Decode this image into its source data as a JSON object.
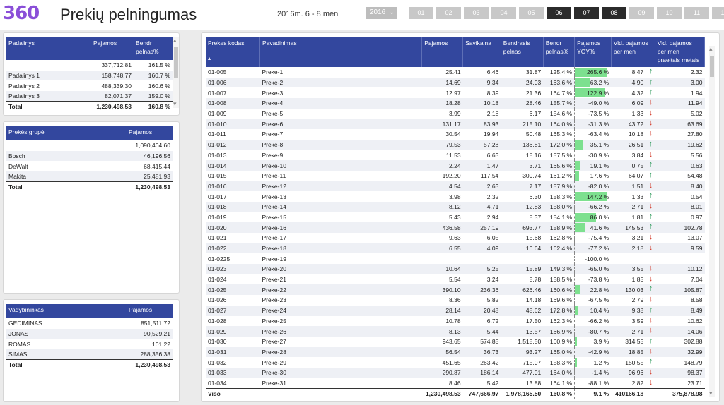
{
  "header": {
    "logo": "360",
    "title": "Prekių pelningumas",
    "period": "2016m. 6 - 8 mėn",
    "year": "2016",
    "months": [
      "01",
      "02",
      "03",
      "04",
      "05",
      "06",
      "07",
      "08",
      "09",
      "10",
      "11",
      "12"
    ],
    "selected_months": [
      "06",
      "07",
      "08"
    ]
  },
  "padaliniai": {
    "headers": [
      "Padalinys",
      "Pajamos",
      "Bendr pelnas%"
    ],
    "rows": [
      [
        "",
        "337,712.81",
        "161.5 %"
      ],
      [
        "Padalinys 1",
        "158,748.77",
        "160.7 %"
      ],
      [
        "Padalinys 2",
        "488,339.30",
        "160.6 %"
      ],
      [
        "Padalinys 3",
        "82,071.37",
        "159.0 %"
      ]
    ],
    "total": [
      "Total",
      "1,230,498.53",
      "160.8 %"
    ]
  },
  "grupes": {
    "headers": [
      "Prekės grupė",
      "Pajamos"
    ],
    "rows": [
      [
        "",
        "1,090,404.60"
      ],
      [
        "Bosch",
        "46,196.56"
      ],
      [
        "DeWalt",
        "68,415.44"
      ],
      [
        "Makita",
        "25,481.93"
      ]
    ],
    "total": [
      "Total",
      "1,230,498.53"
    ]
  },
  "vadybininkai": {
    "headers": [
      "Vadybininkas",
      "Pajamos"
    ],
    "rows": [
      [
        "GEDIMINAS",
        "851,511.72"
      ],
      [
        "JONAS",
        "90,529.21"
      ],
      [
        "ROMAS",
        "101.22"
      ],
      [
        "SIMAS",
        "288,356.38"
      ]
    ],
    "total": [
      "Total",
      "1,230,498.53"
    ]
  },
  "main": {
    "headers": [
      "Prekes kodas",
      "Pavadinimas",
      "Pajamos",
      "Savikaina",
      "Bendrasis pelnas",
      "Bendr pelnas%",
      "Pajamos YOY%",
      "Vid. pajamos per men",
      "Vid. pajamos per men praeitais metais"
    ],
    "sort_icon": "sort-ascending-icon",
    "rows": [
      {
        "code": "01-005",
        "name": "Preke-1",
        "paj": "25.41",
        "sav": "6.46",
        "bp": "31.87",
        "bpp": "125.4 %",
        "yoy": "265.6 %",
        "yoyv": 265.6,
        "vid": "8.47",
        "dir": "up",
        "prev": "2.32"
      },
      {
        "code": "01-006",
        "name": "Preke-2",
        "paj": "14.69",
        "sav": "9.34",
        "bp": "24.03",
        "bpp": "163.6 %",
        "yoy": "63.2 %",
        "yoyv": 63.2,
        "vid": "4.90",
        "dir": "up",
        "prev": "3.00"
      },
      {
        "code": "01-007",
        "name": "Preke-3",
        "paj": "12.97",
        "sav": "8.39",
        "bp": "21.36",
        "bpp": "164.7 %",
        "yoy": "122.9 %",
        "yoyv": 122.9,
        "vid": "4.32",
        "dir": "up",
        "prev": "1.94"
      },
      {
        "code": "01-008",
        "name": "Preke-4",
        "paj": "18.28",
        "sav": "10.18",
        "bp": "28.46",
        "bpp": "155.7 %",
        "yoy": "-49.0 %",
        "yoyv": -49.0,
        "vid": "6.09",
        "dir": "down",
        "prev": "11.94"
      },
      {
        "code": "01-009",
        "name": "Preke-5",
        "paj": "3.99",
        "sav": "2.18",
        "bp": "6.17",
        "bpp": "154.6 %",
        "yoy": "-73.5 %",
        "yoyv": -73.5,
        "vid": "1.33",
        "dir": "down",
        "prev": "5.02"
      },
      {
        "code": "01-010",
        "name": "Preke-6",
        "paj": "131.17",
        "sav": "83.93",
        "bp": "215.10",
        "bpp": "164.0 %",
        "yoy": "-31.3 %",
        "yoyv": -31.3,
        "vid": "43.72",
        "dir": "down",
        "prev": "63.69"
      },
      {
        "code": "01-011",
        "name": "Preke-7",
        "paj": "30.54",
        "sav": "19.94",
        "bp": "50.48",
        "bpp": "165.3 %",
        "yoy": "-63.4 %",
        "yoyv": -63.4,
        "vid": "10.18",
        "dir": "down",
        "prev": "27.80"
      },
      {
        "code": "01-012",
        "name": "Preke-8",
        "paj": "79.53",
        "sav": "57.28",
        "bp": "136.81",
        "bpp": "172.0 %",
        "yoy": "35.1 %",
        "yoyv": 35.1,
        "vid": "26.51",
        "dir": "up",
        "prev": "19.62"
      },
      {
        "code": "01-013",
        "name": "Preke-9",
        "paj": "11.53",
        "sav": "6.63",
        "bp": "18.16",
        "bpp": "157.5 %",
        "yoy": "-30.9 %",
        "yoyv": -30.9,
        "vid": "3.84",
        "dir": "down",
        "prev": "5.56"
      },
      {
        "code": "01-014",
        "name": "Preke-10",
        "paj": "2.24",
        "sav": "1.47",
        "bp": "3.71",
        "bpp": "165.6 %",
        "yoy": "19.1 %",
        "yoyv": 19.1,
        "vid": "0.75",
        "dir": "up",
        "prev": "0.63"
      },
      {
        "code": "01-015",
        "name": "Preke-11",
        "paj": "192.20",
        "sav": "117.54",
        "bp": "309.74",
        "bpp": "161.2 %",
        "yoy": "17.6 %",
        "yoyv": 17.6,
        "vid": "64.07",
        "dir": "up",
        "prev": "54.48"
      },
      {
        "code": "01-016",
        "name": "Preke-12",
        "paj": "4.54",
        "sav": "2.63",
        "bp": "7.17",
        "bpp": "157.9 %",
        "yoy": "-82.0 %",
        "yoyv": -82.0,
        "vid": "1.51",
        "dir": "down",
        "prev": "8.40"
      },
      {
        "code": "01-017",
        "name": "Preke-13",
        "paj": "3.98",
        "sav": "2.32",
        "bp": "6.30",
        "bpp": "158.3 %",
        "yoy": "147.2 %",
        "yoyv": 147.2,
        "vid": "1.33",
        "dir": "up",
        "prev": "0.54"
      },
      {
        "code": "01-018",
        "name": "Preke-14",
        "paj": "8.12",
        "sav": "4.71",
        "bp": "12.83",
        "bpp": "158.0 %",
        "yoy": "-66.2 %",
        "yoyv": -66.2,
        "vid": "2.71",
        "dir": "down",
        "prev": "8.01"
      },
      {
        "code": "01-019",
        "name": "Preke-15",
        "paj": "5.43",
        "sav": "2.94",
        "bp": "8.37",
        "bpp": "154.1 %",
        "yoy": "86.0 %",
        "yoyv": 86.0,
        "vid": "1.81",
        "dir": "up",
        "prev": "0.97"
      },
      {
        "code": "01-020",
        "name": "Preke-16",
        "paj": "436.58",
        "sav": "257.19",
        "bp": "693.77",
        "bpp": "158.9 %",
        "yoy": "41.6 %",
        "yoyv": 41.6,
        "vid": "145.53",
        "dir": "up",
        "prev": "102.78"
      },
      {
        "code": "01-021",
        "name": "Preke-17",
        "paj": "9.63",
        "sav": "6.05",
        "bp": "15.68",
        "bpp": "162.8 %",
        "yoy": "-75.4 %",
        "yoyv": -75.4,
        "vid": "3.21",
        "dir": "down",
        "prev": "13.07"
      },
      {
        "code": "01-022",
        "name": "Preke-18",
        "paj": "6.55",
        "sav": "4.09",
        "bp": "10.64",
        "bpp": "162.4 %",
        "yoy": "-77.2 %",
        "yoyv": -77.2,
        "vid": "2.18",
        "dir": "down",
        "prev": "9.59"
      },
      {
        "code": "01-0225",
        "name": "Preke-19",
        "paj": "",
        "sav": "",
        "bp": "",
        "bpp": "",
        "yoy": "-100.0 %",
        "yoyv": -100.0,
        "vid": "",
        "dir": "",
        "prev": ""
      },
      {
        "code": "01-023",
        "name": "Preke-20",
        "paj": "10.64",
        "sav": "5.25",
        "bp": "15.89",
        "bpp": "149.3 %",
        "yoy": "-65.0 %",
        "yoyv": -65.0,
        "vid": "3.55",
        "dir": "down",
        "prev": "10.12"
      },
      {
        "code": "01-024",
        "name": "Preke-21",
        "paj": "5.54",
        "sav": "3.24",
        "bp": "8.78",
        "bpp": "158.5 %",
        "yoy": "-73.8 %",
        "yoyv": -73.8,
        "vid": "1.85",
        "dir": "down",
        "prev": "7.04"
      },
      {
        "code": "01-025",
        "name": "Preke-22",
        "paj": "390.10",
        "sav": "236.36",
        "bp": "626.46",
        "bpp": "160.6 %",
        "yoy": "22.8 %",
        "yoyv": 22.8,
        "vid": "130.03",
        "dir": "up",
        "prev": "105.87"
      },
      {
        "code": "01-026",
        "name": "Preke-23",
        "paj": "8.36",
        "sav": "5.82",
        "bp": "14.18",
        "bpp": "169.6 %",
        "yoy": "-67.5 %",
        "yoyv": -67.5,
        "vid": "2.79",
        "dir": "down",
        "prev": "8.58"
      },
      {
        "code": "01-027",
        "name": "Preke-24",
        "paj": "28.14",
        "sav": "20.48",
        "bp": "48.62",
        "bpp": "172.8 %",
        "yoy": "10.4 %",
        "yoyv": 10.4,
        "vid": "9.38",
        "dir": "up",
        "prev": "8.49"
      },
      {
        "code": "01-028",
        "name": "Preke-25",
        "paj": "10.78",
        "sav": "6.72",
        "bp": "17.50",
        "bpp": "162.3 %",
        "yoy": "-66.2 %",
        "yoyv": -66.2,
        "vid": "3.59",
        "dir": "down",
        "prev": "10.62"
      },
      {
        "code": "01-029",
        "name": "Preke-26",
        "paj": "8.13",
        "sav": "5.44",
        "bp": "13.57",
        "bpp": "166.9 %",
        "yoy": "-80.7 %",
        "yoyv": -80.7,
        "vid": "2.71",
        "dir": "down",
        "prev": "14.06"
      },
      {
        "code": "01-030",
        "name": "Preke-27",
        "paj": "943.65",
        "sav": "574.85",
        "bp": "1,518.50",
        "bpp": "160.9 %",
        "yoy": "3.9 %",
        "yoyv": 3.9,
        "vid": "314.55",
        "dir": "up",
        "prev": "302.88"
      },
      {
        "code": "01-031",
        "name": "Preke-28",
        "paj": "56.54",
        "sav": "36.73",
        "bp": "93.27",
        "bpp": "165.0 %",
        "yoy": "-42.9 %",
        "yoyv": -42.9,
        "vid": "18.85",
        "dir": "down",
        "prev": "32.99"
      },
      {
        "code": "01-032",
        "name": "Preke-29",
        "paj": "451.65",
        "sav": "263.42",
        "bp": "715.07",
        "bpp": "158.3 %",
        "yoy": "1.2 %",
        "yoyv": 1.2,
        "vid": "150.55",
        "dir": "up",
        "prev": "148.79"
      },
      {
        "code": "01-033",
        "name": "Preke-30",
        "paj": "290.87",
        "sav": "186.14",
        "bp": "477.01",
        "bpp": "164.0 %",
        "yoy": "-1.4 %",
        "yoyv": -1.4,
        "vid": "96.96",
        "dir": "down",
        "prev": "98.37"
      },
      {
        "code": "01-034",
        "name": "Preke-31",
        "paj": "8.46",
        "sav": "5.42",
        "bp": "13.88",
        "bpp": "164.1 %",
        "yoy": "-88.1 %",
        "yoyv": -88.1,
        "vid": "2.82",
        "dir": "down",
        "prev": "23.71"
      }
    ],
    "total": {
      "label": "Viso",
      "paj": "1,230,498.53",
      "sav": "747,666.97",
      "bp": "1,978,165.50",
      "bpp": "160.8 %",
      "yoy": "9.1 %",
      "vid": "410166.18",
      "prev": "375,878.98"
    },
    "colors": {
      "header": "#33479e",
      "yoy_bar": "#7de08f",
      "up": "#2e9a5a",
      "down": "#d23a2a"
    }
  }
}
